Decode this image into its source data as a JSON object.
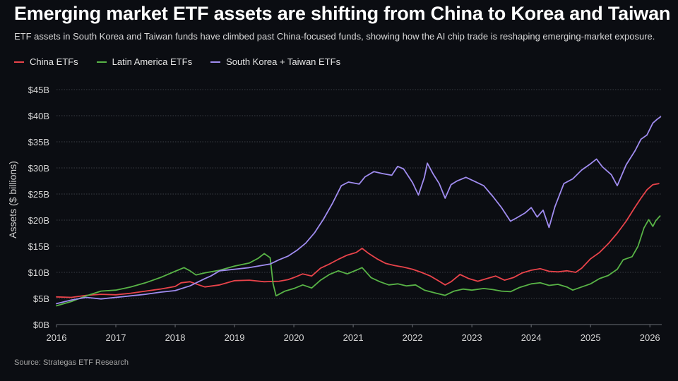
{
  "header": {
    "title": "Emerging market ETF assets are shifting from China to Korea and Taiwan",
    "subtitle": "ETF assets in South Korea and Taiwan funds have climbed past China-focused funds, showing how the AI chip trade is reshaping emerging-market exposure."
  },
  "footer": {
    "source": "Source: Strategas ETF Research"
  },
  "colors": {
    "background": "#0b0d12",
    "grid": "#3a3d44",
    "china": "#e8434a",
    "latam": "#58b346",
    "korea_taiwan": "#a08cf0"
  },
  "chart_data": {
    "type": "line",
    "title": "Emerging market ETF assets are shifting from China to Korea and Taiwan",
    "ylabel": "Assets ($ billions)",
    "xlabel": "",
    "xlim": [
      2016,
      2026.2
    ],
    "ylim": [
      0,
      45
    ],
    "grid": true,
    "legend_position": "top-left",
    "x_ticks": [
      {
        "value": 2016,
        "label": "2016"
      },
      {
        "value": 2017,
        "label": "2017"
      },
      {
        "value": 2018,
        "label": "2018"
      },
      {
        "value": 2019,
        "label": "2019"
      },
      {
        "value": 2020,
        "label": "2020"
      },
      {
        "value": 2021,
        "label": "2021"
      },
      {
        "value": 2022,
        "label": "2022"
      },
      {
        "value": 2023,
        "label": "2023"
      },
      {
        "value": 2024,
        "label": "2024"
      },
      {
        "value": 2025,
        "label": "2025"
      },
      {
        "value": 2026,
        "label": "2026"
      }
    ],
    "y_ticks": [
      {
        "value": 0,
        "label": "$0B"
      },
      {
        "value": 5,
        "label": "$5B"
      },
      {
        "value": 10,
        "label": "$10B"
      },
      {
        "value": 15,
        "label": "$15B"
      },
      {
        "value": 20,
        "label": "$20B"
      },
      {
        "value": 25,
        "label": "$25B"
      },
      {
        "value": 30,
        "label": "$30B"
      },
      {
        "value": 35,
        "label": "$35B"
      },
      {
        "value": 40,
        "label": "$40B"
      },
      {
        "value": 45,
        "label": "$45B"
      }
    ],
    "series": [
      {
        "name": "China ETFs",
        "color": "#e8434a",
        "points": [
          [
            2016.0,
            5.3
          ],
          [
            2016.25,
            5.2
          ],
          [
            2016.5,
            5.6
          ],
          [
            2016.75,
            5.8
          ],
          [
            2017.0,
            5.7
          ],
          [
            2017.25,
            6.0
          ],
          [
            2017.5,
            6.4
          ],
          [
            2017.75,
            6.8
          ],
          [
            2018.0,
            7.3
          ],
          [
            2018.1,
            8.0
          ],
          [
            2018.25,
            8.2
          ],
          [
            2018.4,
            7.6
          ],
          [
            2018.5,
            7.2
          ],
          [
            2018.75,
            7.6
          ],
          [
            2019.0,
            8.4
          ],
          [
            2019.25,
            8.5
          ],
          [
            2019.5,
            8.2
          ],
          [
            2019.75,
            8.3
          ],
          [
            2019.9,
            8.6
          ],
          [
            2020.0,
            9.0
          ],
          [
            2020.15,
            9.7
          ],
          [
            2020.3,
            9.3
          ],
          [
            2020.45,
            10.8
          ],
          [
            2020.6,
            11.6
          ],
          [
            2020.75,
            12.5
          ],
          [
            2020.9,
            13.3
          ],
          [
            2021.05,
            13.8
          ],
          [
            2021.15,
            14.6
          ],
          [
            2021.25,
            13.7
          ],
          [
            2021.4,
            12.6
          ],
          [
            2021.55,
            11.7
          ],
          [
            2021.7,
            11.3
          ],
          [
            2021.85,
            11.0
          ],
          [
            2022.0,
            10.6
          ],
          [
            2022.15,
            10.0
          ],
          [
            2022.3,
            9.3
          ],
          [
            2022.45,
            8.3
          ],
          [
            2022.55,
            7.6
          ],
          [
            2022.65,
            8.2
          ],
          [
            2022.8,
            9.6
          ],
          [
            2022.95,
            8.8
          ],
          [
            2023.1,
            8.3
          ],
          [
            2023.25,
            8.8
          ],
          [
            2023.4,
            9.3
          ],
          [
            2023.55,
            8.5
          ],
          [
            2023.7,
            9.0
          ],
          [
            2023.85,
            9.9
          ],
          [
            2024.0,
            10.4
          ],
          [
            2024.15,
            10.7
          ],
          [
            2024.3,
            10.2
          ],
          [
            2024.45,
            10.1
          ],
          [
            2024.6,
            10.3
          ],
          [
            2024.75,
            10.0
          ],
          [
            2024.85,
            10.8
          ],
          [
            2025.0,
            12.6
          ],
          [
            2025.15,
            13.8
          ],
          [
            2025.3,
            15.5
          ],
          [
            2025.45,
            17.5
          ],
          [
            2025.6,
            19.8
          ],
          [
            2025.75,
            22.5
          ],
          [
            2025.85,
            24.2
          ],
          [
            2025.95,
            25.8
          ],
          [
            2026.05,
            26.8
          ],
          [
            2026.15,
            27.0
          ]
        ]
      },
      {
        "name": "Latin America ETFs",
        "color": "#58b346",
        "points": [
          [
            2016.0,
            3.6
          ],
          [
            2016.25,
            4.4
          ],
          [
            2016.5,
            5.5
          ],
          [
            2016.75,
            6.4
          ],
          [
            2017.0,
            6.6
          ],
          [
            2017.25,
            7.2
          ],
          [
            2017.5,
            8.0
          ],
          [
            2017.75,
            9.0
          ],
          [
            2018.0,
            10.2
          ],
          [
            2018.15,
            10.9
          ],
          [
            2018.25,
            10.3
          ],
          [
            2018.35,
            9.5
          ],
          [
            2018.5,
            9.9
          ],
          [
            2018.75,
            10.4
          ],
          [
            2019.0,
            11.2
          ],
          [
            2019.25,
            11.8
          ],
          [
            2019.4,
            12.7
          ],
          [
            2019.5,
            13.6
          ],
          [
            2019.6,
            12.8
          ],
          [
            2019.65,
            7.8
          ],
          [
            2019.7,
            5.5
          ],
          [
            2019.85,
            6.4
          ],
          [
            2020.0,
            6.9
          ],
          [
            2020.15,
            7.6
          ],
          [
            2020.3,
            7.0
          ],
          [
            2020.45,
            8.5
          ],
          [
            2020.6,
            9.6
          ],
          [
            2020.75,
            10.3
          ],
          [
            2020.9,
            9.7
          ],
          [
            2021.05,
            10.4
          ],
          [
            2021.15,
            10.9
          ],
          [
            2021.3,
            9.0
          ],
          [
            2021.45,
            8.2
          ],
          [
            2021.6,
            7.6
          ],
          [
            2021.75,
            7.8
          ],
          [
            2021.9,
            7.4
          ],
          [
            2022.05,
            7.6
          ],
          [
            2022.2,
            6.6
          ],
          [
            2022.4,
            6.0
          ],
          [
            2022.55,
            5.6
          ],
          [
            2022.7,
            6.4
          ],
          [
            2022.85,
            6.8
          ],
          [
            2023.0,
            6.6
          ],
          [
            2023.2,
            6.9
          ],
          [
            2023.35,
            6.7
          ],
          [
            2023.5,
            6.4
          ],
          [
            2023.65,
            6.3
          ],
          [
            2023.8,
            7.1
          ],
          [
            2024.0,
            7.8
          ],
          [
            2024.15,
            8.0
          ],
          [
            2024.3,
            7.5
          ],
          [
            2024.45,
            7.7
          ],
          [
            2024.6,
            7.2
          ],
          [
            2024.7,
            6.6
          ],
          [
            2024.85,
            7.2
          ],
          [
            2025.0,
            7.8
          ],
          [
            2025.15,
            8.8
          ],
          [
            2025.3,
            9.4
          ],
          [
            2025.45,
            10.6
          ],
          [
            2025.55,
            12.4
          ],
          [
            2025.7,
            13.0
          ],
          [
            2025.8,
            15.0
          ],
          [
            2025.9,
            18.5
          ],
          [
            2025.98,
            20.1
          ],
          [
            2026.05,
            18.8
          ],
          [
            2026.1,
            19.9
          ],
          [
            2026.17,
            20.8
          ]
        ]
      },
      {
        "name": "South Korea + Taiwan ETFs",
        "color": "#a08cf0",
        "points": [
          [
            2016.0,
            4.0
          ],
          [
            2016.25,
            4.7
          ],
          [
            2016.5,
            5.2
          ],
          [
            2016.75,
            4.9
          ],
          [
            2017.0,
            5.2
          ],
          [
            2017.25,
            5.5
          ],
          [
            2017.5,
            5.8
          ],
          [
            2017.75,
            6.2
          ],
          [
            2018.0,
            6.5
          ],
          [
            2018.25,
            7.4
          ],
          [
            2018.5,
            8.8
          ],
          [
            2018.6,
            9.3
          ],
          [
            2018.75,
            10.3
          ],
          [
            2019.0,
            10.6
          ],
          [
            2019.25,
            10.9
          ],
          [
            2019.45,
            11.3
          ],
          [
            2019.6,
            11.6
          ],
          [
            2019.75,
            12.4
          ],
          [
            2019.9,
            13.1
          ],
          [
            2020.05,
            14.2
          ],
          [
            2020.2,
            15.6
          ],
          [
            2020.35,
            17.6
          ],
          [
            2020.5,
            20.2
          ],
          [
            2020.65,
            23.2
          ],
          [
            2020.8,
            26.6
          ],
          [
            2020.92,
            27.3
          ],
          [
            2021.1,
            26.9
          ],
          [
            2021.2,
            28.3
          ],
          [
            2021.35,
            29.3
          ],
          [
            2021.5,
            28.9
          ],
          [
            2021.65,
            28.6
          ],
          [
            2021.75,
            30.3
          ],
          [
            2021.85,
            29.8
          ],
          [
            2022.0,
            27.2
          ],
          [
            2022.1,
            24.8
          ],
          [
            2022.2,
            28.2
          ],
          [
            2022.25,
            30.9
          ],
          [
            2022.35,
            28.8
          ],
          [
            2022.45,
            27.0
          ],
          [
            2022.55,
            24.2
          ],
          [
            2022.65,
            26.8
          ],
          [
            2022.75,
            27.5
          ],
          [
            2022.9,
            28.2
          ],
          [
            2023.05,
            27.4
          ],
          [
            2023.2,
            26.6
          ],
          [
            2023.35,
            24.6
          ],
          [
            2023.5,
            22.4
          ],
          [
            2023.65,
            19.8
          ],
          [
            2023.75,
            20.4
          ],
          [
            2023.9,
            21.4
          ],
          [
            2024.0,
            22.4
          ],
          [
            2024.1,
            20.6
          ],
          [
            2024.2,
            21.9
          ],
          [
            2024.3,
            18.6
          ],
          [
            2024.4,
            22.6
          ],
          [
            2024.55,
            27.0
          ],
          [
            2024.7,
            27.9
          ],
          [
            2024.85,
            29.6
          ],
          [
            2025.0,
            30.8
          ],
          [
            2025.1,
            31.7
          ],
          [
            2025.2,
            30.2
          ],
          [
            2025.35,
            28.7
          ],
          [
            2025.45,
            26.6
          ],
          [
            2025.6,
            30.6
          ],
          [
            2025.75,
            33.3
          ],
          [
            2025.85,
            35.5
          ],
          [
            2025.95,
            36.3
          ],
          [
            2026.05,
            38.6
          ],
          [
            2026.12,
            39.3
          ],
          [
            2026.18,
            39.8
          ]
        ]
      }
    ]
  }
}
